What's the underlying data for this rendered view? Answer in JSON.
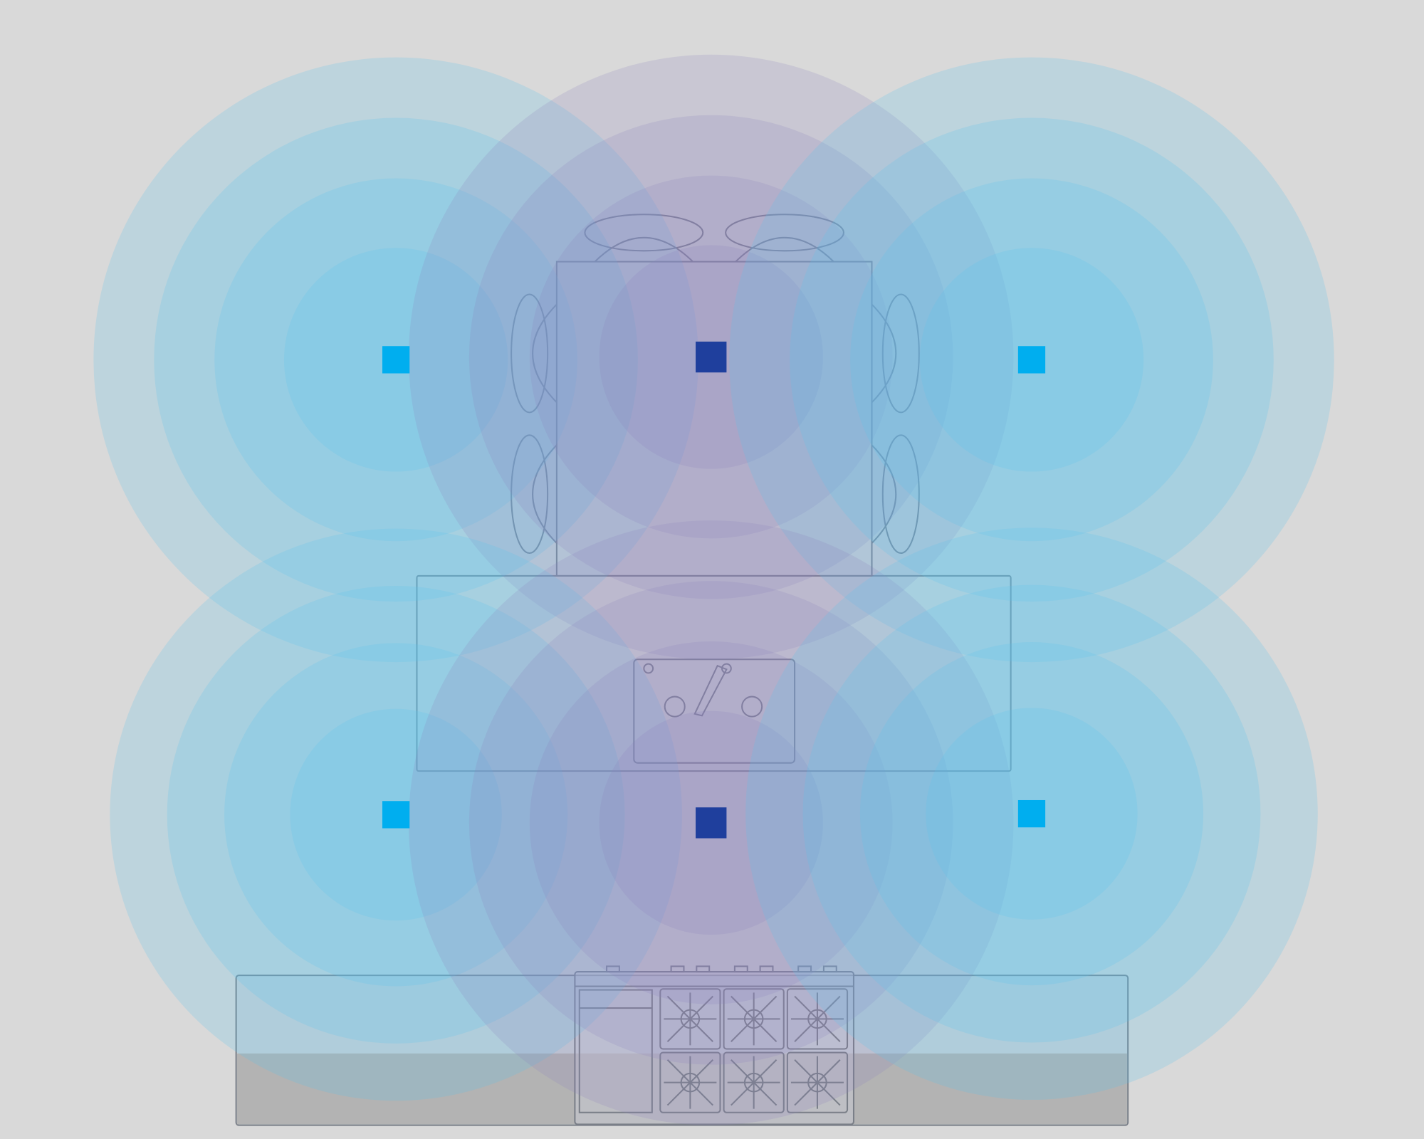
{
  "diagram": {
    "background_color": "#d9d9d9",
    "speakers": [
      {
        "id": "speaker-top-left",
        "type": "satellite"
      },
      {
        "id": "speaker-top-center",
        "type": "primary"
      },
      {
        "id": "speaker-top-right",
        "type": "satellite"
      },
      {
        "id": "speaker-bottom-left",
        "type": "satellite"
      },
      {
        "id": "speaker-bottom-center",
        "type": "primary"
      },
      {
        "id": "speaker-bottom-right",
        "type": "satellite"
      }
    ],
    "colors": {
      "satellite_marker": "#00aeef",
      "satellite_coverage": "#5cc5ec",
      "primary_marker": "#1f3f9d",
      "primary_coverage": "#8a80bd",
      "furniture_outline": "#7a7f88",
      "counter_fill": "#b3b3b3"
    },
    "coverage_rings": 4
  }
}
